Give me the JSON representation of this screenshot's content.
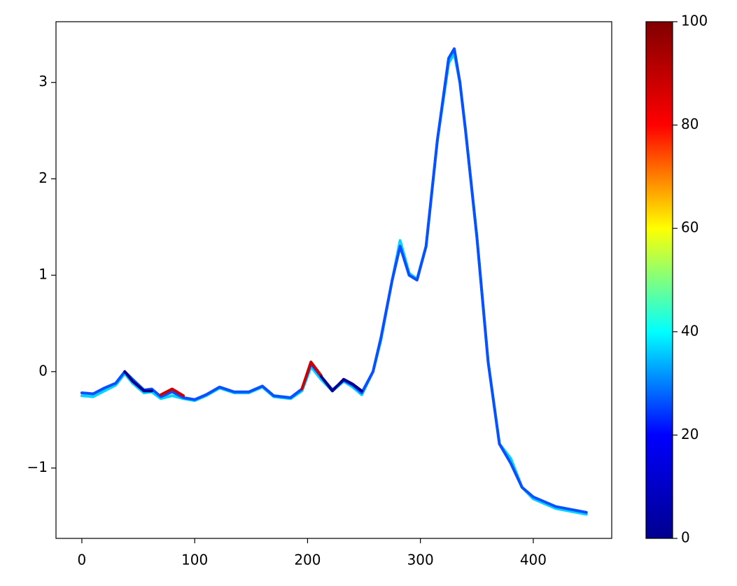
{
  "chart_data": {
    "type": "line",
    "x": [
      0,
      10,
      20,
      30,
      38,
      45,
      55,
      62,
      70,
      80,
      90,
      100,
      110,
      122,
      135,
      148,
      160,
      170,
      185,
      195,
      203,
      212,
      222,
      232,
      240,
      248,
      258,
      265,
      275,
      282,
      290,
      297,
      305,
      315,
      325,
      330,
      335,
      340,
      350,
      360,
      370,
      380,
      390,
      400,
      420,
      447
    ],
    "series": [
      {
        "color": "#00d4ff",
        "values": [
          -0.25,
          -0.26,
          -0.2,
          -0.14,
          -0.02,
          -0.12,
          -0.22,
          -0.21,
          -0.28,
          -0.25,
          -0.28,
          -0.3,
          -0.25,
          -0.17,
          -0.22,
          -0.22,
          -0.16,
          -0.26,
          -0.28,
          -0.2,
          0.05,
          -0.08,
          -0.2,
          -0.1,
          -0.16,
          -0.24,
          0.0,
          0.33,
          0.95,
          1.36,
          1.02,
          0.96,
          1.3,
          2.4,
          3.2,
          3.3,
          3.0,
          2.5,
          1.4,
          0.1,
          -0.75,
          -0.9,
          -1.2,
          -1.32,
          -1.42,
          -1.48
        ]
      },
      {
        "color": "#0a50ff",
        "values": [
          -0.22,
          -0.23,
          -0.17,
          -0.12,
          0.0,
          -0.08,
          -0.19,
          -0.18,
          -0.26,
          -0.21,
          -0.27,
          -0.29,
          -0.24,
          -0.16,
          -0.21,
          -0.21,
          -0.15,
          -0.25,
          -0.27,
          -0.18,
          0.08,
          -0.05,
          -0.19,
          -0.09,
          -0.14,
          -0.22,
          0.0,
          0.35,
          0.95,
          1.3,
          1.0,
          0.95,
          1.3,
          2.4,
          3.25,
          3.35,
          3.0,
          2.5,
          1.4,
          0.1,
          -0.75,
          -0.95,
          -1.2,
          -1.3,
          -1.4,
          -1.46
        ]
      },
      {
        "color": "#cc0000",
        "values": [
          null,
          null,
          null,
          null,
          null,
          null,
          null,
          null,
          -0.24,
          -0.18,
          -0.25,
          null,
          null,
          null,
          null,
          null,
          null,
          null,
          null,
          -0.18,
          0.1,
          -0.04,
          null,
          null,
          null,
          null,
          null,
          null,
          null,
          null,
          null,
          null,
          null,
          null,
          null,
          null,
          null,
          null,
          null,
          null,
          null,
          null,
          null,
          null,
          null,
          null
        ]
      },
      {
        "color": "#00008f",
        "values": [
          null,
          null,
          null,
          null,
          0.0,
          -0.1,
          -0.2,
          -0.2,
          null,
          null,
          null,
          null,
          null,
          null,
          null,
          null,
          null,
          null,
          null,
          null,
          null,
          -0.05,
          -0.2,
          -0.08,
          -0.13,
          -0.2,
          null,
          null,
          null,
          null,
          null,
          null,
          null,
          null,
          null,
          null,
          null,
          null,
          null,
          null,
          null,
          null,
          null,
          null,
          null,
          null
        ]
      }
    ],
    "xlim": [
      -22.9,
      469.5
    ],
    "ylim": [
      -1.73,
      3.63
    ],
    "xticks": [
      0,
      100,
      200,
      300,
      400
    ],
    "yticks": [
      {
        "value": -1,
        "label": "−1"
      },
      0,
      1,
      2,
      3
    ],
    "colorbar": {
      "lim": [
        0,
        100
      ],
      "ticks": [
        0,
        20,
        40,
        60,
        80,
        100
      ],
      "colors": [
        "#00008f",
        "#0000ff",
        "#00ffff",
        "#ffff00",
        "#ff0000",
        "#800000"
      ]
    }
  }
}
